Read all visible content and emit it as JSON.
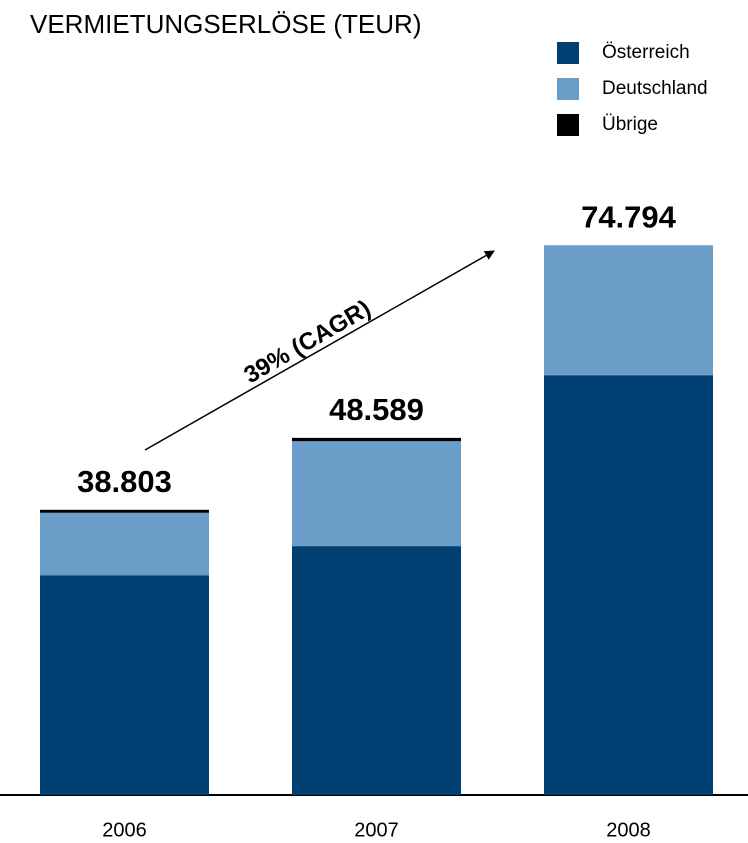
{
  "chart_data": {
    "type": "stacked_bar",
    "title": "VERMIETUNGSERLÖSE (TEUR)",
    "categories": [
      "2006",
      "2007",
      "2008"
    ],
    "series": [
      {
        "name": "Österreich",
        "color": "#003f72",
        "values": [
          29900,
          33860,
          57120
        ]
      },
      {
        "name": "Deutschland",
        "color": "#6a9ec8",
        "values": [
          8500,
          14280,
          17674
        ]
      },
      {
        "name": "Übrige",
        "color": "#000000",
        "values": [
          403,
          449,
          0
        ]
      }
    ],
    "totals": {
      "values": [
        38803,
        48589,
        74794
      ],
      "value_labels": [
        "38.803",
        "48.589",
        "74.794"
      ]
    },
    "annotation": "39% (CAGR)",
    "ylim": [
      0,
      80000
    ]
  }
}
